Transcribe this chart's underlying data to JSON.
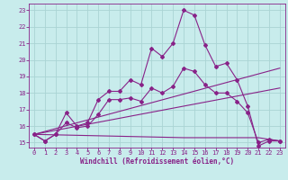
{
  "xlabel": "Windchill (Refroidissement éolien,°C)",
  "background_color": "#c8ecec",
  "line_color": "#882288",
  "grid_color": "#aad4d4",
  "ylim": [
    14.7,
    23.4
  ],
  "xlim": [
    -0.5,
    23.5
  ],
  "yticks": [
    15,
    16,
    17,
    18,
    19,
    20,
    21,
    22,
    23
  ],
  "xticks": [
    0,
    1,
    2,
    3,
    4,
    5,
    6,
    7,
    8,
    9,
    10,
    11,
    12,
    13,
    14,
    15,
    16,
    17,
    18,
    19,
    20,
    21,
    22,
    23
  ],
  "line1_x": [
    0,
    1,
    2,
    3,
    4,
    5,
    6,
    7,
    8,
    9,
    10,
    11,
    12,
    13,
    14,
    15,
    16,
    17,
    18,
    19,
    20,
    21,
    22,
    23
  ],
  "line1_y": [
    15.5,
    15.1,
    15.5,
    16.8,
    16.0,
    16.2,
    17.6,
    18.1,
    18.1,
    18.8,
    18.5,
    20.7,
    20.2,
    21.0,
    23.0,
    22.7,
    20.9,
    19.6,
    19.8,
    18.8,
    17.2,
    14.8,
    15.1,
    15.1
  ],
  "line2_x": [
    0,
    1,
    2,
    3,
    4,
    5,
    6,
    7,
    8,
    9,
    10,
    11,
    12,
    13,
    14,
    15,
    16,
    17,
    18,
    19,
    20,
    21,
    22,
    23
  ],
  "line2_y": [
    15.5,
    15.1,
    15.5,
    16.2,
    15.9,
    16.0,
    16.7,
    17.6,
    17.6,
    17.7,
    17.5,
    18.3,
    18.0,
    18.4,
    19.5,
    19.3,
    18.5,
    18.0,
    18.0,
    17.5,
    16.8,
    15.0,
    15.2,
    15.1
  ],
  "line3_x": [
    0,
    23
  ],
  "line3_y": [
    15.5,
    19.5
  ],
  "line4_x": [
    0,
    23
  ],
  "line4_y": [
    15.5,
    18.3
  ],
  "line5_x": [
    0,
    14,
    21,
    23
  ],
  "line5_y": [
    15.5,
    15.3,
    15.3,
    15.1
  ],
  "xlabel_fontsize": 5.5,
  "tick_fontsize": 5,
  "lw": 0.8,
  "marker_size": 2.0
}
